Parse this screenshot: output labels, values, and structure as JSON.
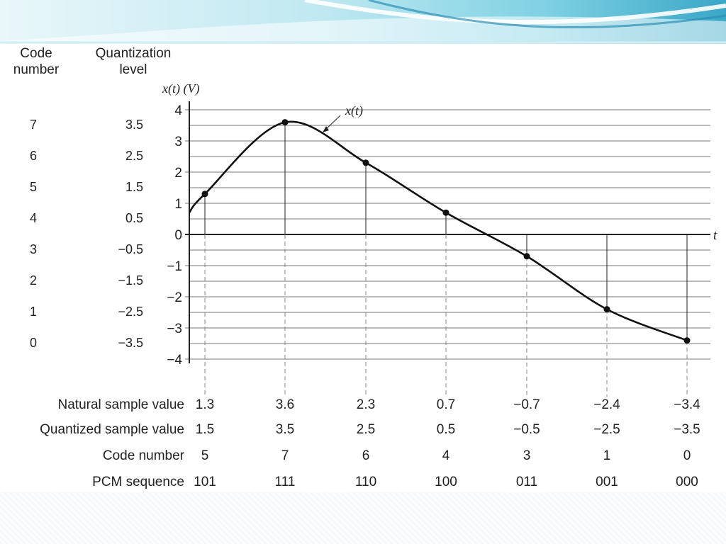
{
  "header": {
    "code_title": [
      "Code",
      "number"
    ],
    "quant_title": [
      "Quantization",
      "level"
    ]
  },
  "chart_data": {
    "type": "line",
    "y_axis_label": "x(t) (V)",
    "x_axis_label": "t",
    "curve_label": "x(t)",
    "ylim": [
      -4,
      4
    ],
    "y_ticks": [
      "4",
      "3",
      "2",
      "1",
      "0",
      "−1",
      "−2",
      "−3",
      "−4"
    ],
    "grid_lines": [
      4,
      3.5,
      3,
      2.5,
      2,
      1.5,
      1,
      0.5,
      -0.5,
      -1,
      -1.5,
      -2,
      -2.5,
      -3,
      -3.5,
      -4
    ],
    "quantization_levels": [
      {
        "code": "7",
        "level": "3.5",
        "value": 3.5
      },
      {
        "code": "6",
        "level": "2.5",
        "value": 2.5
      },
      {
        "code": "5",
        "level": "1.5",
        "value": 1.5
      },
      {
        "code": "4",
        "level": "0.5",
        "value": 0.5
      },
      {
        "code": "3",
        "level": "−0.5",
        "value": -0.5
      },
      {
        "code": "2",
        "level": "−1.5",
        "value": -1.5
      },
      {
        "code": "1",
        "level": "−2.5",
        "value": -2.5
      },
      {
        "code": "0",
        "level": "−3.5",
        "value": -3.5
      }
    ],
    "samples": [
      1.3,
      3.6,
      2.3,
      0.7,
      -0.7,
      -2.4,
      -3.4
    ],
    "curve_start_value": 0.7,
    "table": {
      "row_labels": [
        "Natural sample value",
        "Quantized sample value",
        "Code number",
        "PCM sequence"
      ],
      "natural": [
        "1.3",
        "3.6",
        "2.3",
        "0.7",
        "−0.7",
        "−2.4",
        "−3.4"
      ],
      "quantized": [
        "1.5",
        "3.5",
        "2.5",
        "0.5",
        "−0.5",
        "−2.5",
        "−3.5"
      ],
      "code": [
        "5",
        "7",
        "6",
        "4",
        "3",
        "1",
        "0"
      ],
      "pcm": [
        "101",
        "111",
        "110",
        "100",
        "011",
        "001",
        "000"
      ]
    }
  },
  "colors": {
    "grid": "#777777",
    "curve": "#111111",
    "band_light": "#dff4f8",
    "band_mid": "#9fdcea",
    "band_dark": "#3aa7c7"
  }
}
